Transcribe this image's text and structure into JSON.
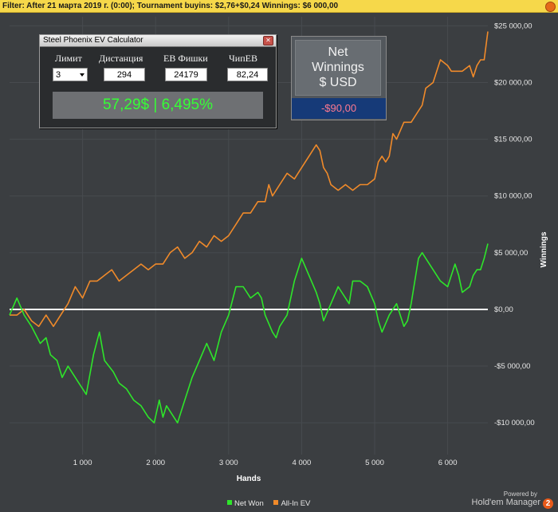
{
  "filter_bar": {
    "text": "Filter: After 21 марта 2019 г. (0:00); Tournament buyins: $2,76+$0,24 Winnings: $6 000,00"
  },
  "calculator": {
    "title": "Steel Phoenix EV Calculator",
    "labels": {
      "limit": "Лимит",
      "distance": "Дистанция",
      "ev_chips": "ЕВ Фишки",
      "chip_ev": "ЧипЕВ"
    },
    "values": {
      "limit": "3",
      "distance": "294",
      "ev_chips": "24179",
      "chip_ev": "82,24"
    },
    "result": "57,29$ | 6,495%"
  },
  "net_box": {
    "title_line1": "Net",
    "title_line2": "Winnings",
    "title_line3": "$ USD",
    "value": "-$90,00"
  },
  "branding": {
    "powered_by": "Powered by",
    "name": "Hold'em Manager",
    "logo_digit": "2"
  },
  "colors": {
    "net_won": "#2ee52a",
    "all_in_ev": "#f08a2a",
    "zero_line": "#ffffff",
    "grid": "#474b4f"
  },
  "chart_data": {
    "type": "line",
    "xlabel": "Hands",
    "ylabel": "Winnings",
    "xlim": [
      0,
      6550
    ],
    "ylim": [
      -12800,
      25800
    ],
    "x_ticks": [
      1000,
      2000,
      3000,
      4000,
      5000,
      6000
    ],
    "x_tick_labels": [
      "1 000",
      "2 000",
      "3 000",
      "4 000",
      "5 000",
      "6 000"
    ],
    "y_ticks": [
      -10000,
      -5000,
      0,
      5000,
      10000,
      15000,
      20000,
      25000
    ],
    "y_tick_labels": [
      "-$10 000,00",
      "-$5 000,00",
      "$0,00",
      "$5 000,00",
      "$10 000,00",
      "$15 000,00",
      "$20 000,00",
      "$25 000,00"
    ],
    "y_axis_side": "right",
    "grid": true,
    "legend": "bottom-center",
    "series": [
      {
        "name": "Net Won",
        "color": "#2ee52a",
        "x": [
          0,
          100,
          200,
          300,
          420,
          500,
          560,
          650,
          720,
          800,
          950,
          1050,
          1150,
          1230,
          1300,
          1420,
          1500,
          1600,
          1700,
          1800,
          1900,
          1980,
          2050,
          2100,
          2150,
          2250,
          2300,
          2400,
          2500,
          2600,
          2700,
          2800,
          2900,
          3000,
          3100,
          3200,
          3300,
          3400,
          3450,
          3500,
          3600,
          3650,
          3700,
          3750,
          3800,
          3900,
          4000,
          4100,
          4200,
          4250,
          4300,
          4400,
          4500,
          4600,
          4650,
          4700,
          4800,
          4900,
          5000,
          5050,
          5100,
          5200,
          5300,
          5350,
          5400,
          5450,
          5500,
          5600,
          5650,
          5700,
          5800,
          5900,
          6000,
          6100,
          6150,
          6200,
          6300,
          6350,
          6400,
          6450,
          6500,
          6550
        ],
        "y": [
          -500,
          1000,
          -500,
          -1500,
          -3000,
          -2500,
          -4000,
          -4500,
          -6000,
          -5000,
          -6500,
          -7500,
          -4000,
          -2000,
          -4500,
          -5500,
          -6500,
          -7000,
          -8000,
          -8500,
          -9500,
          -10000,
          -8000,
          -9500,
          -8500,
          -9500,
          -10000,
          -8000,
          -6000,
          -4500,
          -3000,
          -4500,
          -2000,
          -500,
          2000,
          2000,
          1000,
          1500,
          1000,
          -500,
          -2000,
          -2500,
          -1500,
          -1000,
          -500,
          2500,
          4500,
          3000,
          1500,
          500,
          -1000,
          500,
          2000,
          1000,
          500,
          2500,
          2500,
          2000,
          500,
          -1000,
          -2000,
          -500,
          500,
          -500,
          -1500,
          -1000,
          500,
          4500,
          5000,
          4500,
          3500,
          2500,
          2000,
          4000,
          3000,
          1500,
          2000,
          3000,
          3500,
          3500,
          4500,
          5800
        ]
      },
      {
        "name": "All-In EV",
        "color": "#f08a2a",
        "x": [
          0,
          50,
          100,
          200,
          300,
          400,
          500,
          600,
          700,
          800,
          900,
          1000,
          1100,
          1200,
          1300,
          1400,
          1500,
          1600,
          1700,
          1800,
          1900,
          2000,
          2100,
          2200,
          2300,
          2400,
          2500,
          2600,
          2700,
          2800,
          2900,
          3000,
          3100,
          3200,
          3300,
          3400,
          3500,
          3550,
          3600,
          3700,
          3800,
          3900,
          4000,
          4100,
          4200,
          4250,
          4300,
          4350,
          4400,
          4500,
          4600,
          4700,
          4800,
          4900,
          5000,
          5050,
          5100,
          5150,
          5200,
          5250,
          5300,
          5400,
          5500,
          5600,
          5650,
          5700,
          5800,
          5900,
          6000,
          6050,
          6100,
          6200,
          6300,
          6350,
          6400,
          6450,
          6500,
          6550
        ],
        "y": [
          -500,
          -500,
          -500,
          0,
          -1000,
          -1500,
          -500,
          -1500,
          -500,
          500,
          2000,
          1000,
          2500,
          2500,
          3000,
          3500,
          2500,
          3000,
          3500,
          4000,
          3500,
          4000,
          4000,
          5000,
          5500,
          4500,
          5000,
          6000,
          5500,
          6500,
          6000,
          6500,
          7500,
          8500,
          8500,
          9500,
          9500,
          11000,
          10000,
          11000,
          12000,
          11500,
          12500,
          13500,
          14500,
          14000,
          12500,
          12000,
          11000,
          10500,
          11000,
          10500,
          11000,
          11000,
          11500,
          13000,
          13500,
          13000,
          13500,
          15500,
          15000,
          16500,
          16500,
          17500,
          18000,
          19500,
          20000,
          22000,
          21500,
          21000,
          21000,
          21000,
          21500,
          20500,
          21500,
          22000,
          22000,
          24500
        ]
      }
    ]
  }
}
